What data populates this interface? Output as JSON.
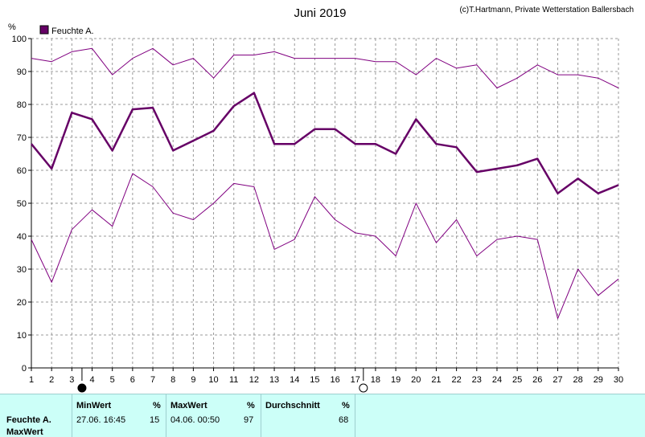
{
  "title": "Juni 2019",
  "copyright": "(c)T.Hartmann, Private Wetterstation Ballersbach",
  "y_unit": "%",
  "chart_data": {
    "type": "line",
    "x": [
      1,
      2,
      3,
      4,
      5,
      6,
      7,
      8,
      9,
      10,
      11,
      12,
      13,
      14,
      15,
      16,
      17,
      18,
      19,
      20,
      21,
      22,
      23,
      24,
      25,
      26,
      27,
      28,
      29,
      30
    ],
    "ylim": [
      0,
      100
    ],
    "yticks": [
      0,
      10,
      20,
      30,
      40,
      50,
      60,
      70,
      80,
      90,
      100
    ],
    "grid": true,
    "legend_position": "top-left",
    "series": [
      {
        "name": "Feuchte A.",
        "role": "mean",
        "color": "#660066",
        "values": [
          68,
          60.5,
          77.5,
          75.5,
          66,
          78.5,
          79,
          66,
          69,
          72,
          79.5,
          83.5,
          68,
          68,
          72.5,
          72.5,
          68,
          68,
          65,
          75.5,
          68,
          67,
          59.5,
          60.5,
          61.5,
          63.5,
          53,
          57.5,
          53,
          55.5
        ]
      },
      {
        "role": "max",
        "color": "#800080",
        "values": [
          94,
          93,
          96,
          97,
          89,
          94,
          97,
          92,
          94,
          88,
          95,
          95,
          96,
          94,
          94,
          94,
          94,
          93,
          93,
          89,
          94,
          91,
          92,
          85,
          88,
          92,
          89,
          89,
          88,
          85
        ]
      },
      {
        "role": "min",
        "color": "#800080",
        "values": [
          39,
          26,
          42,
          48,
          43,
          59,
          55,
          47,
          45,
          50,
          56,
          55,
          36,
          39,
          52,
          45,
          41,
          40,
          34,
          50,
          38,
          45,
          34,
          39,
          40,
          39,
          15,
          30,
          22,
          27
        ]
      }
    ],
    "moon_phases": [
      {
        "day": 3.5,
        "phase": "new-moon"
      },
      {
        "day": 17.4,
        "phase": "full-moon"
      }
    ]
  },
  "stats": {
    "row_label": "Feuchte A.",
    "row_label2": "MaxWert",
    "min": {
      "header": "MinWert",
      "unit": "%",
      "datetime": "27.06.  16:45",
      "value": "15"
    },
    "max": {
      "header": "MaxWert",
      "unit": "%",
      "datetime": "04.06.  00:50",
      "value": "97"
    },
    "avg": {
      "header": "Durchschnitt",
      "unit": "%",
      "value": "68"
    }
  }
}
